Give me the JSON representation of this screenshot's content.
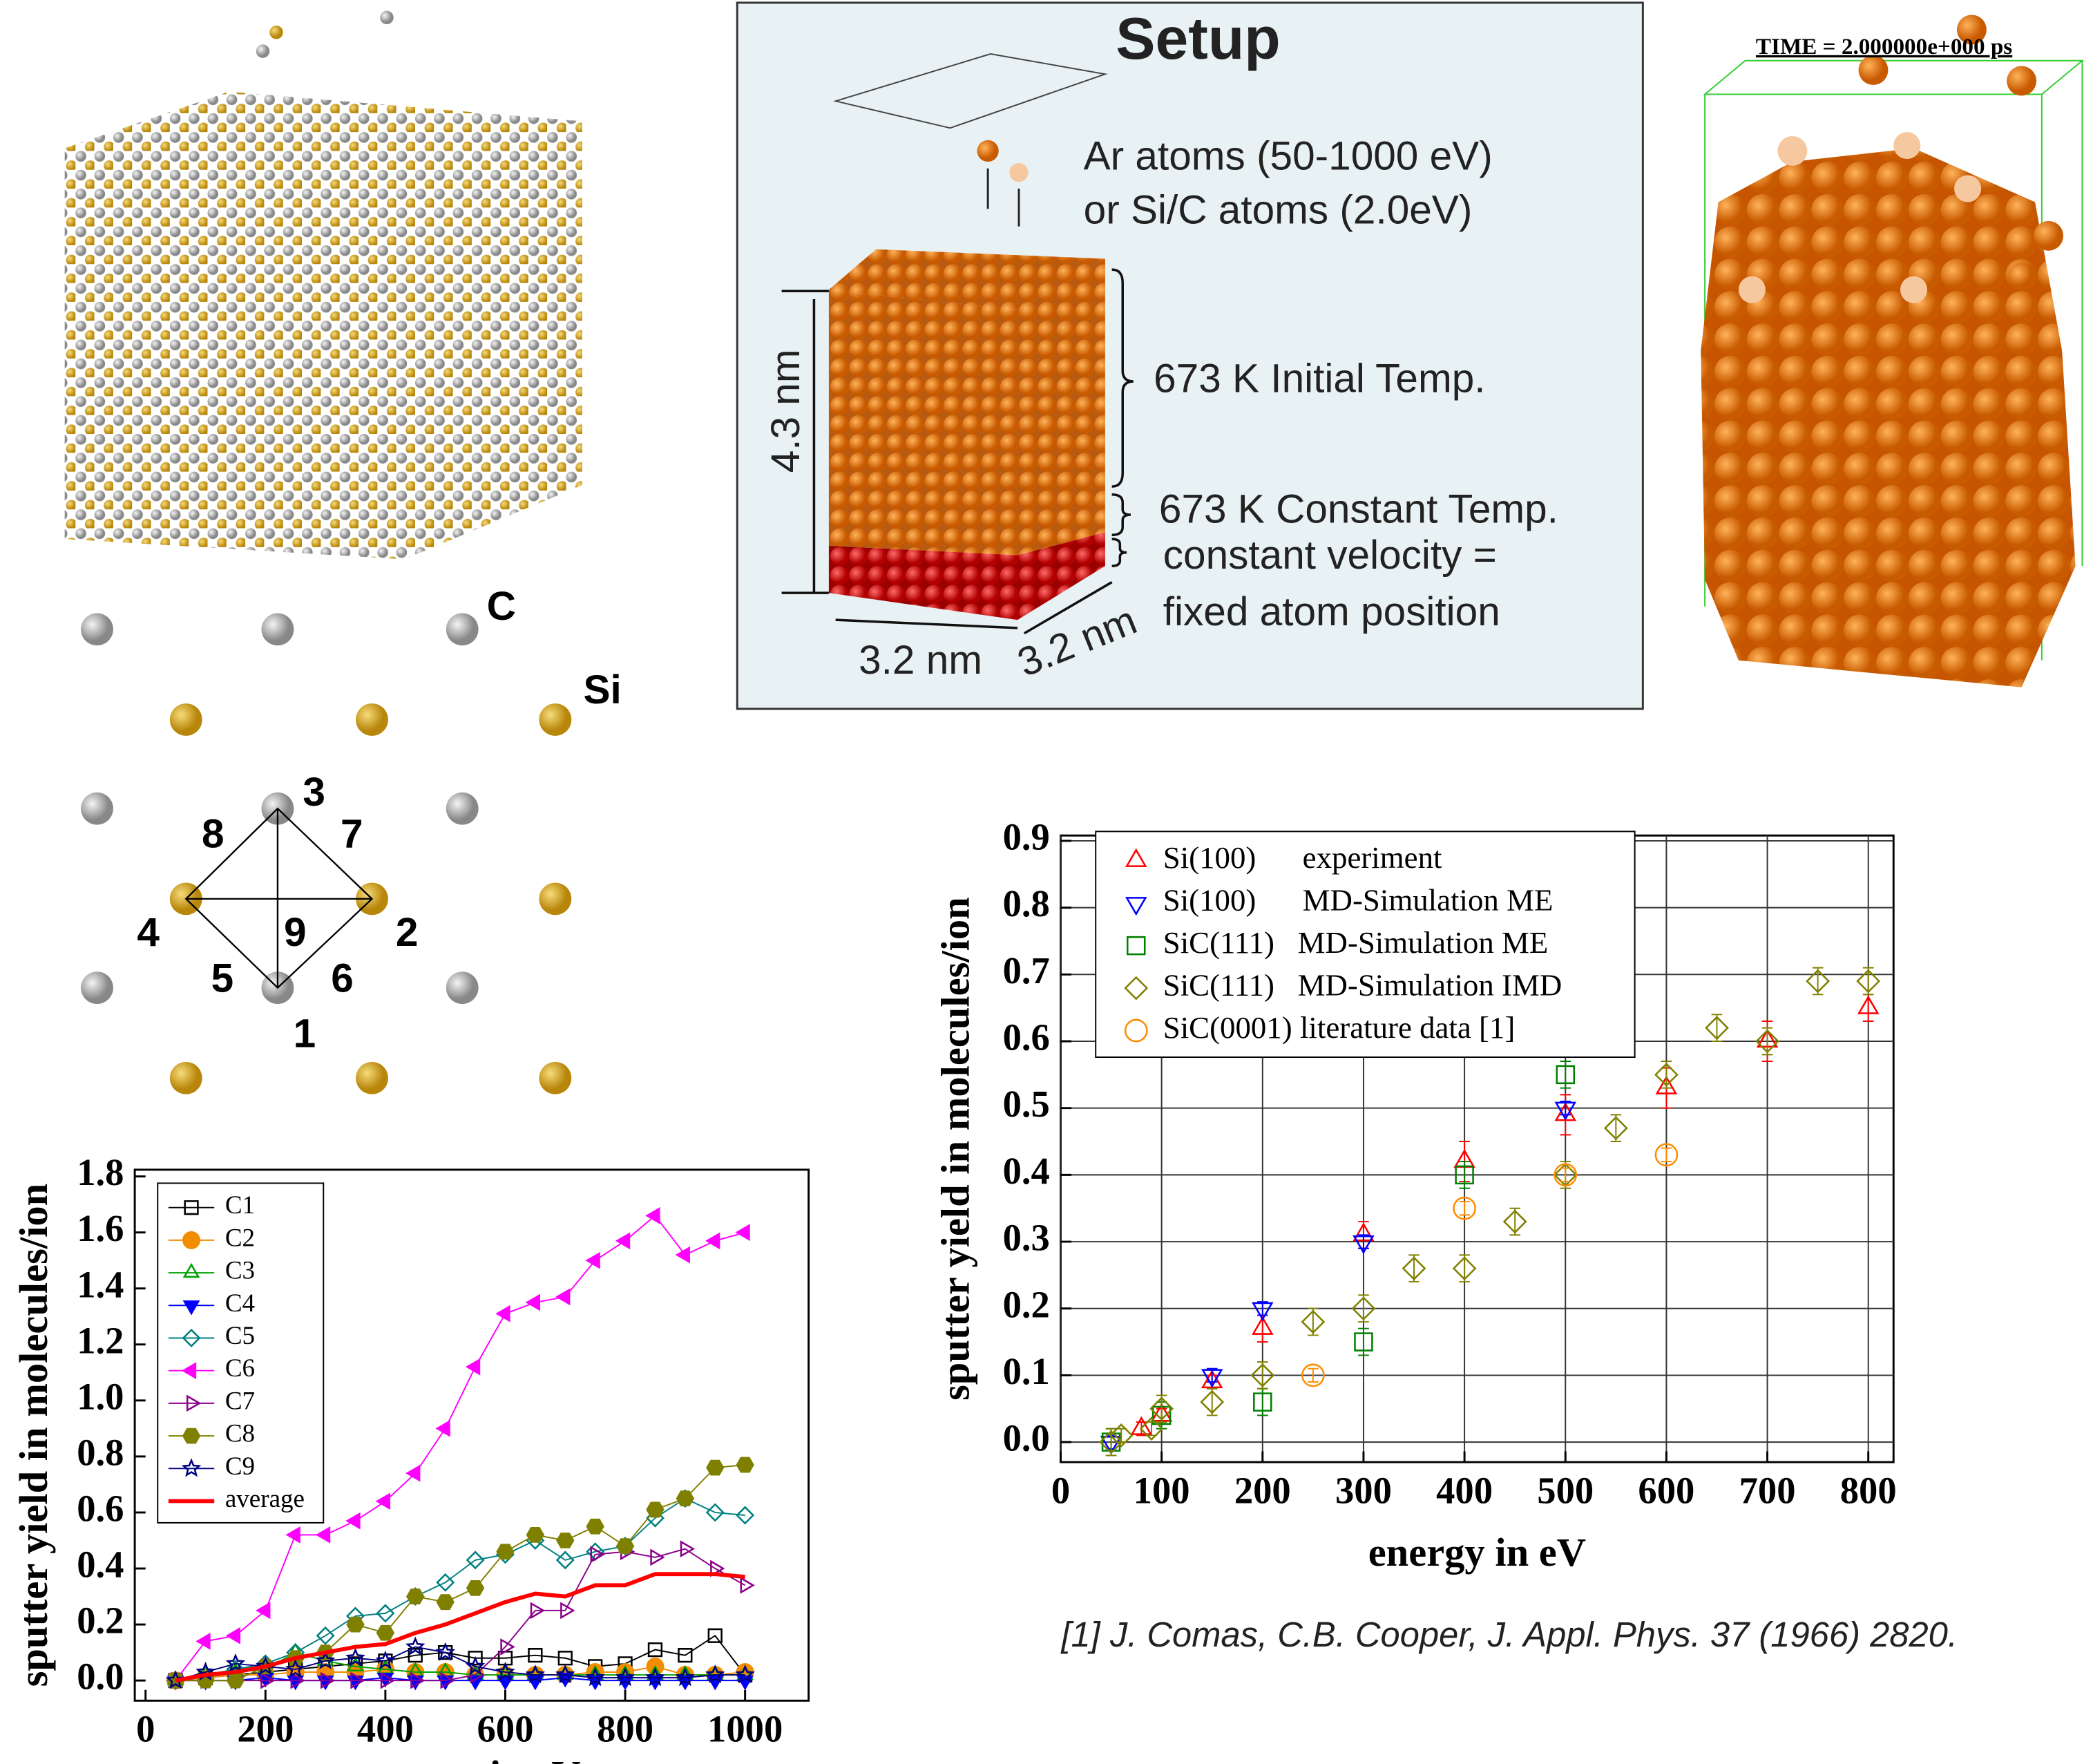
{
  "chart_data": [
    {
      "type": "line",
      "xlabel": "energy in eV",
      "ylabel": "sputter yield in molecules/ion",
      "x": [
        50,
        100,
        150,
        200,
        250,
        300,
        350,
        400,
        450,
        500,
        550,
        600,
        650,
        700,
        750,
        800,
        850,
        900,
        950,
        1000
      ],
      "xlim": [
        -18,
        1106
      ],
      "xticks": [
        0,
        200,
        400,
        600,
        800,
        1000
      ],
      "ylim": [
        -0.072,
        1.824
      ],
      "yticks": [
        {
          "value": 0,
          "label": "0.0"
        },
        0.2,
        0.4,
        0.6,
        0.8,
        {
          "value": 1,
          "label": "1.0"
        },
        1.2,
        1.4,
        1.6,
        1.8
      ],
      "grid": false,
      "legend": "upper left",
      "series": [
        {
          "name": "C1",
          "color": "#000000",
          "marker": "square",
          "filled": false,
          "values": [
            0,
            0.01,
            0.02,
            0.03,
            0.04,
            0.05,
            0.06,
            0.07,
            0.09,
            0.1,
            0.08,
            0.08,
            0.09,
            0.08,
            0.05,
            0.06,
            0.11,
            0.09,
            0.16,
            0.02
          ]
        },
        {
          "name": "C2",
          "color": "#f28c00",
          "marker": "circle",
          "filled": true,
          "values": [
            0,
            0.01,
            0.02,
            0.02,
            0.03,
            0.03,
            0.03,
            0.04,
            0.03,
            0.03,
            0.02,
            0.02,
            0.02,
            0.02,
            0.03,
            0.03,
            0.05,
            0.02,
            0.02,
            0.03
          ]
        },
        {
          "name": "C3",
          "color": "#00a000",
          "marker": "triangle-up",
          "filled": false,
          "values": [
            0,
            0.02,
            0.03,
            0.04,
            0.1,
            0.07,
            0.05,
            0.04,
            0.03,
            0.03,
            0.02,
            0.02,
            0.02,
            0.02,
            0.02,
            0.02,
            0.02,
            0.02,
            0.02,
            0.02
          ]
        },
        {
          "name": "C4",
          "color": "#0000ff",
          "marker": "triangle-down",
          "filled": true,
          "values": [
            0,
            0,
            0,
            0.01,
            0,
            0,
            0,
            0.01,
            0,
            0,
            0,
            0,
            0,
            0.01,
            0,
            0,
            0,
            0,
            0,
            0
          ]
        },
        {
          "name": "C5",
          "color": "#008080",
          "marker": "diamond",
          "filled": false,
          "values": [
            0,
            0.02,
            0.04,
            0.06,
            0.1,
            0.16,
            0.23,
            0.24,
            0.3,
            0.35,
            0.43,
            0.45,
            0.5,
            0.43,
            0.46,
            0.48,
            0.58,
            0.65,
            0.6,
            0.59
          ]
        },
        {
          "name": "C6",
          "color": "#ff00ff",
          "marker": "triangle-left",
          "filled": true,
          "values": [
            0,
            0.14,
            0.16,
            0.25,
            0.52,
            0.52,
            0.57,
            0.64,
            0.74,
            0.9,
            1.12,
            1.31,
            1.35,
            1.37,
            1.5,
            1.57,
            1.66,
            1.52,
            1.57,
            1.6
          ]
        },
        {
          "name": "C7",
          "color": "#8b008b",
          "marker": "triangle-right",
          "filled": false,
          "values": [
            0,
            0,
            0,
            0,
            0,
            0,
            0,
            0,
            0,
            0,
            0.02,
            0.12,
            0.25,
            0.25,
            0.45,
            0.46,
            0.44,
            0.47,
            0.4,
            0.34
          ]
        },
        {
          "name": "C8",
          "color": "#808000",
          "marker": "hexagon",
          "filled": true,
          "values": [
            0,
            0,
            0,
            0.05,
            0.08,
            0.1,
            0.2,
            0.17,
            0.3,
            0.28,
            0.33,
            0.46,
            0.52,
            0.5,
            0.55,
            0.48,
            0.61,
            0.65,
            0.76,
            0.77
          ]
        },
        {
          "name": "C9",
          "color": "#000080",
          "marker": "star",
          "filled": false,
          "values": [
            0,
            0.03,
            0.06,
            0.05,
            0.04,
            0.07,
            0.08,
            0.07,
            0.12,
            0.1,
            0.05,
            0.03,
            0.02,
            0.02,
            0.01,
            0.01,
            0.01,
            0.01,
            0.02,
            0.02
          ]
        },
        {
          "name": "average",
          "color": "#ff0000",
          "marker": "none",
          "filled": false,
          "line_width": 3,
          "values": [
            0,
            0.02,
            0.03,
            0.05,
            0.08,
            0.1,
            0.12,
            0.13,
            0.17,
            0.2,
            0.24,
            0.28,
            0.31,
            0.3,
            0.34,
            0.34,
            0.38,
            0.38,
            0.38,
            0.37
          ]
        }
      ]
    },
    {
      "type": "scatter",
      "xlabel": "energy in eV",
      "ylabel": "sputter yield in molecules/ion",
      "xlim": [
        0,
        825
      ],
      "xticks": [
        0,
        100,
        200,
        300,
        400,
        500,
        600,
        700,
        800
      ],
      "ylim": [
        -0.03,
        0.908
      ],
      "yticks": [
        {
          "value": 0,
          "label": "0.0"
        },
        0.1,
        0.2,
        0.3,
        0.4,
        0.5,
        0.6,
        0.7,
        0.8,
        0.9
      ],
      "grid": true,
      "legend": "upper left",
      "series": [
        {
          "name": "Si(100)      experiment",
          "color": "#ff0000",
          "marker": "triangle-up",
          "filled": false,
          "x": [
            80,
            100,
            150,
            200,
            300,
            400,
            500,
            600,
            700,
            800
          ],
          "values": [
            0.02,
            0.04,
            0.09,
            0.17,
            0.31,
            0.42,
            0.49,
            0.53,
            0.6,
            0.65
          ],
          "errors": [
            0.01,
            0.01,
            0.01,
            0.02,
            0.02,
            0.03,
            0.03,
            0.03,
            0.03,
            0.02
          ]
        },
        {
          "name": "Si(100)      MD-Simulation ME",
          "color": "#0000ff",
          "marker": "triangle-down",
          "filled": false,
          "x": [
            50,
            150,
            200,
            300,
            500
          ],
          "values": [
            0,
            0.1,
            0.2,
            0.3,
            0.5
          ],
          "errors": [
            0.01,
            0.01,
            0.01,
            0.01,
            0.01
          ]
        },
        {
          "name": "SiC(111)   MD-Simulation ME",
          "color": "#008000",
          "marker": "square",
          "filled": false,
          "x": [
            50,
            100,
            200,
            300,
            400,
            500
          ],
          "values": [
            0,
            0.04,
            0.06,
            0.15,
            0.4,
            0.55
          ],
          "errors": [
            0.02,
            0.02,
            0.02,
            0.02,
            0.02,
            0.02
          ]
        },
        {
          "name": "SiC(111)   MD-Simulation IMD",
          "color": "#808000",
          "marker": "diamond",
          "filled": false,
          "x": [
            50,
            60,
            90,
            100,
            150,
            200,
            250,
            300,
            350,
            400,
            450,
            500,
            550,
            600,
            650,
            700,
            750,
            800
          ],
          "values": [
            0,
            0.01,
            0.02,
            0.05,
            0.06,
            0.1,
            0.18,
            0.2,
            0.26,
            0.26,
            0.33,
            0.4,
            0.47,
            0.55,
            0.62,
            0.6,
            0.69,
            0.69
          ],
          "errors": [
            0.02,
            0.01,
            0.01,
            0.02,
            0.02,
            0.02,
            0.02,
            0.02,
            0.02,
            0.02,
            0.02,
            0.02,
            0.02,
            0.02,
            0.02,
            0.02,
            0.02,
            0.02
          ]
        },
        {
          "name": "SiC(0001) literature data [1]",
          "color": "#ff8c00",
          "marker": "circle",
          "filled": false,
          "x": [
            250,
            400,
            500,
            600
          ],
          "values": [
            0.1,
            0.35,
            0.4,
            0.43
          ],
          "errors": [
            0.01,
            0.01,
            0.01,
            0.01
          ]
        }
      ]
    }
  ],
  "lattice": {
    "labels": [
      "C",
      "Si"
    ],
    "sites": [
      "1",
      "2",
      "3",
      "4",
      "5",
      "6",
      "7",
      "8",
      "9"
    ]
  },
  "setup": {
    "title": "Setup",
    "beam": [
      "Ar atoms (50-1000 eV)",
      "or Si/C atoms (2.0eV)"
    ],
    "layers": [
      "673 K Initial Temp.",
      "673 K Constant Temp.",
      "constant velocity =",
      "fixed atom position"
    ],
    "height": "4.3 nm",
    "width": "3.2 nm",
    "depth": "3.2 nm"
  },
  "snapshot": {
    "time": "TIME = 2.000000e+000 ps"
  },
  "reference": "[1] J. Comas, C.B. Cooper, J. Appl. Phys. 37 (1966) 2820."
}
